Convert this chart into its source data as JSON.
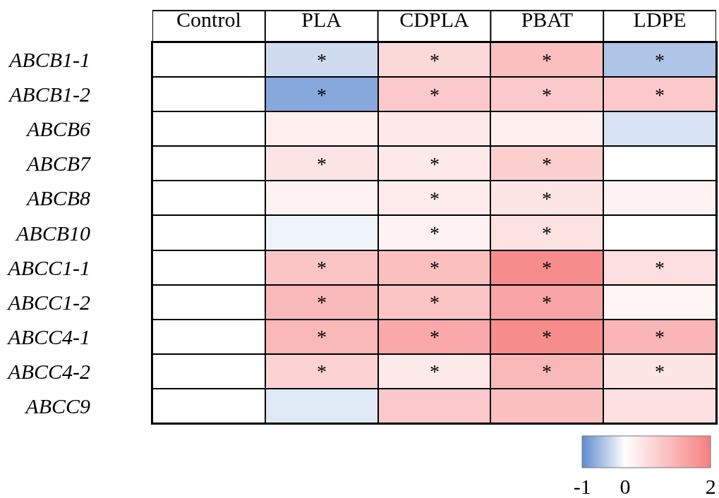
{
  "chart_data": {
    "type": "heatmap",
    "categories": [
      "Control",
      "PLA",
      "CDPLA",
      "PBAT",
      "LDPE"
    ],
    "y_categories": [
      "ABCB1-1",
      "ABCB1-2",
      "ABCB6",
      "ABCB7",
      "ABCB8",
      "ABCB10",
      "ABCC1-1",
      "ABCC1-2",
      "ABCC4-1",
      "ABCC4-2",
      "ABCC9"
    ],
    "cells": [
      [
        0,
        -0.3,
        0.6,
        1.0,
        -0.5
      ],
      [
        0,
        -0.75,
        0.85,
        0.85,
        0.85
      ],
      [
        0,
        0.25,
        0.35,
        0.25,
        -0.25
      ],
      [
        0,
        0.4,
        0.35,
        0.75,
        0
      ],
      [
        0,
        0.2,
        0.3,
        0.4,
        0.2
      ],
      [
        0,
        -0.1,
        0.2,
        0.45,
        0
      ],
      [
        0,
        0.9,
        1.0,
        1.8,
        0.5
      ],
      [
        0,
        1.1,
        0.9,
        1.4,
        0.15
      ],
      [
        0,
        1.1,
        1.35,
        1.8,
        1.15
      ],
      [
        0,
        0.7,
        0.35,
        1.1,
        0.4
      ],
      [
        0,
        -0.2,
        0.85,
        1.0,
        0.5
      ]
    ],
    "cell_labels": [
      [
        null,
        "*",
        "*",
        "*",
        "*"
      ],
      [
        null,
        "*",
        "*",
        "*",
        "*"
      ],
      [
        null,
        null,
        null,
        null,
        null
      ],
      [
        null,
        "*",
        "*",
        "*",
        null
      ],
      [
        null,
        null,
        "*",
        "*",
        null
      ],
      [
        null,
        null,
        "*",
        "*",
        null
      ],
      [
        null,
        "*",
        "*",
        "*",
        "*"
      ],
      [
        null,
        "*",
        "*",
        "*",
        null
      ],
      [
        null,
        "*",
        "*",
        "*",
        "*"
      ],
      [
        null,
        "*",
        "*",
        "*",
        "*"
      ],
      [
        null,
        null,
        null,
        null,
        null
      ]
    ],
    "clim": [
      -1,
      2
    ],
    "cticks": [
      -1,
      0,
      2
    ],
    "colors": [
      "#5e8bce",
      "#ffffff",
      "#f67f80"
    ]
  }
}
